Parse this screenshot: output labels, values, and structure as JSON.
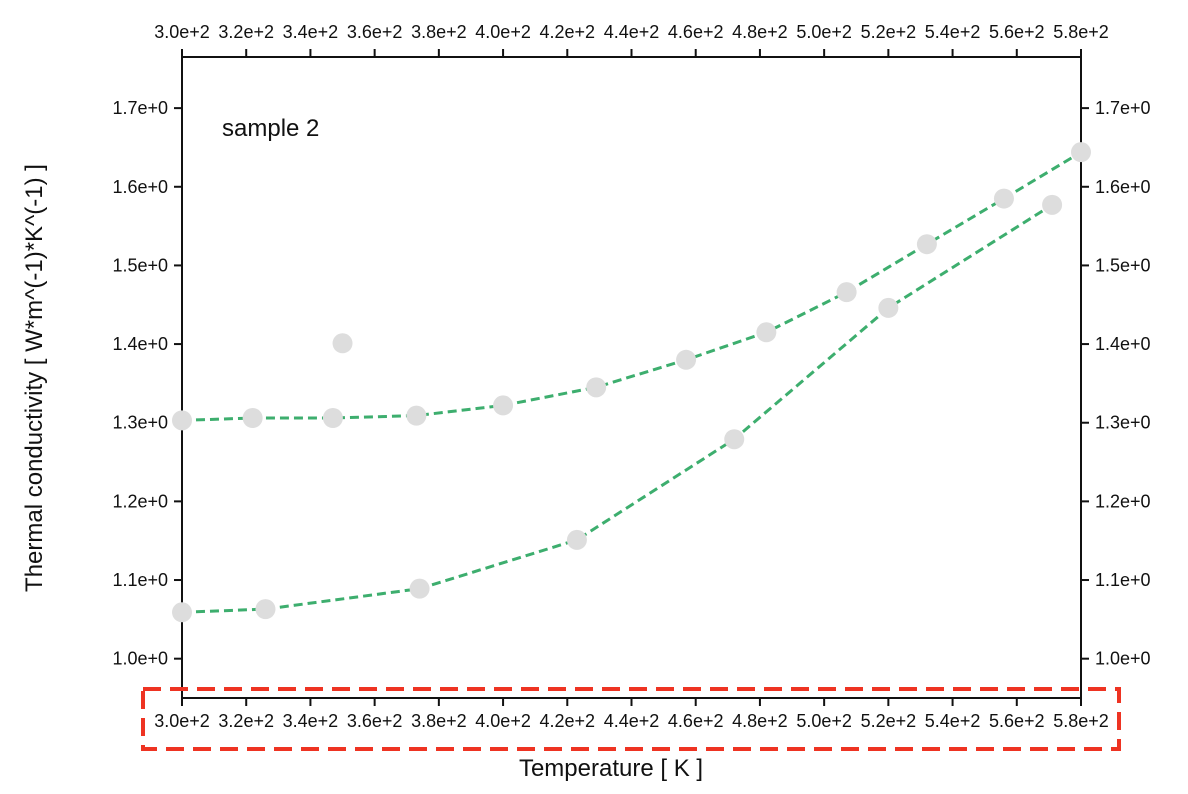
{
  "chart_data": {
    "type": "scatter",
    "title": "",
    "xlabel": "Temperature [ K ]",
    "ylabel": "Thermal conductivity [ W*m^(-1)*K^(-1) ]",
    "xlim": [
      300,
      580
    ],
    "ylim": [
      0.95,
      1.765
    ],
    "x_ticks": [
      300,
      320,
      340,
      360,
      380,
      400,
      420,
      440,
      460,
      480,
      500,
      520,
      540,
      560,
      580
    ],
    "x_tick_labels": [
      "3.0e+2",
      "3.2e+2",
      "3.4e+2",
      "3.6e+2",
      "3.8e+2",
      "4.0e+2",
      "4.2e+2",
      "4.4e+2",
      "4.6e+2",
      "4.8e+2",
      "5.0e+2",
      "5.2e+2",
      "5.4e+2",
      "5.6e+2",
      "5.8e+2"
    ],
    "y_ticks": [
      1.0,
      1.1,
      1.2,
      1.3,
      1.4,
      1.5,
      1.6,
      1.7
    ],
    "y_tick_labels": [
      "1.0e+0",
      "1.1e+0",
      "1.2e+0",
      "1.3e+0",
      "1.4e+0",
      "1.5e+0",
      "1.6e+0",
      "1.7e+0"
    ],
    "mirror_axes": true,
    "grid": false,
    "annotation": "sample 2",
    "highlight": "bottom x-axis tick labels",
    "series": [
      {
        "fit_line": true,
        "x": [
          300,
          322,
          347,
          373,
          400,
          429,
          457,
          482,
          507,
          532,
          556,
          580
        ],
        "y": [
          1.303,
          1.306,
          1.306,
          1.309,
          1.322,
          1.345,
          1.38,
          1.415,
          1.466,
          1.527,
          1.585,
          1.644
        ]
      },
      {
        "fit_line": true,
        "x": [
          300,
          326,
          374,
          423,
          472,
          520,
          571
        ],
        "y": [
          1.059,
          1.063,
          1.089,
          1.151,
          1.279,
          1.446,
          1.577
        ]
      },
      {
        "fit_line": false,
        "x": [
          350
        ],
        "y": [
          1.401
        ]
      }
    ],
    "colors": {
      "fit_line": "#3dae6e",
      "marker": "#dddddd",
      "axis": "#111111",
      "highlight": "#ee3322"
    }
  }
}
